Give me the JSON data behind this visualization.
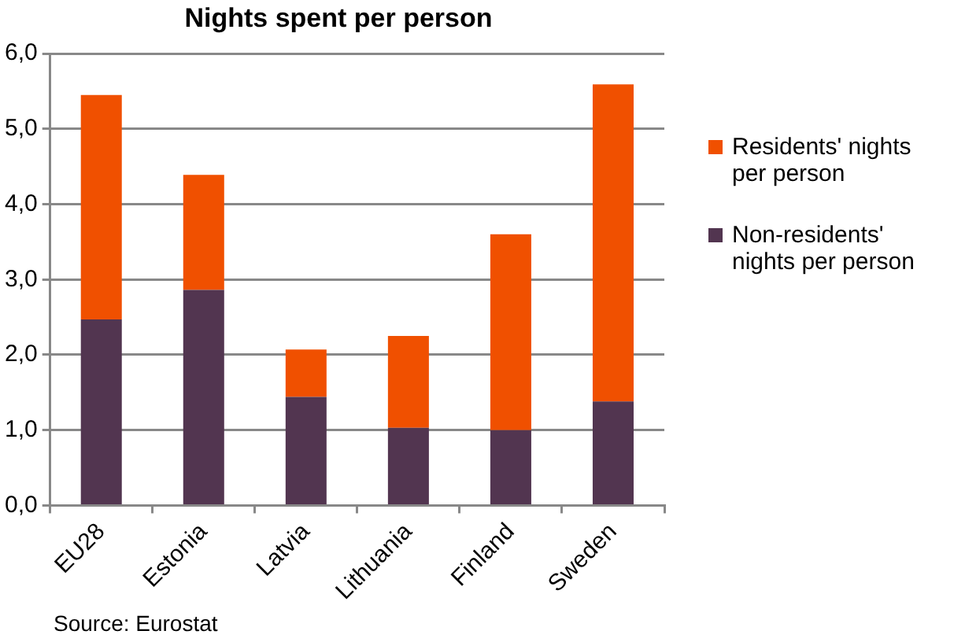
{
  "chart_data": {
    "type": "bar",
    "title": "Nights spent per person",
    "stacked": true,
    "categories": [
      "EU28",
      "Estonia",
      "Latvia",
      "Lithuania",
      "Finland",
      "Sweden"
    ],
    "series": [
      {
        "name": "Non-residents' nights per person",
        "color": "#523550",
        "values": [
          2.47,
          2.86,
          1.44,
          1.03,
          1.0,
          1.38
        ]
      },
      {
        "name": "Residents' nights per person",
        "color": "#f05000",
        "values": [
          2.98,
          1.53,
          0.63,
          1.22,
          2.6,
          4.21
        ]
      }
    ],
    "ylim": [
      0,
      6
    ],
    "yticks": [
      {
        "value": 0,
        "label": "0,0"
      },
      {
        "value": 1,
        "label": "1,0"
      },
      {
        "value": 2,
        "label": "2,0"
      },
      {
        "value": 3,
        "label": "3,0"
      },
      {
        "value": 4,
        "label": "4,0"
      },
      {
        "value": 5,
        "label": "5,0"
      },
      {
        "value": 6,
        "label": "6,0"
      }
    ],
    "grid": "y",
    "legend": "right",
    "annotations": [
      "Source: Eurostat"
    ]
  }
}
